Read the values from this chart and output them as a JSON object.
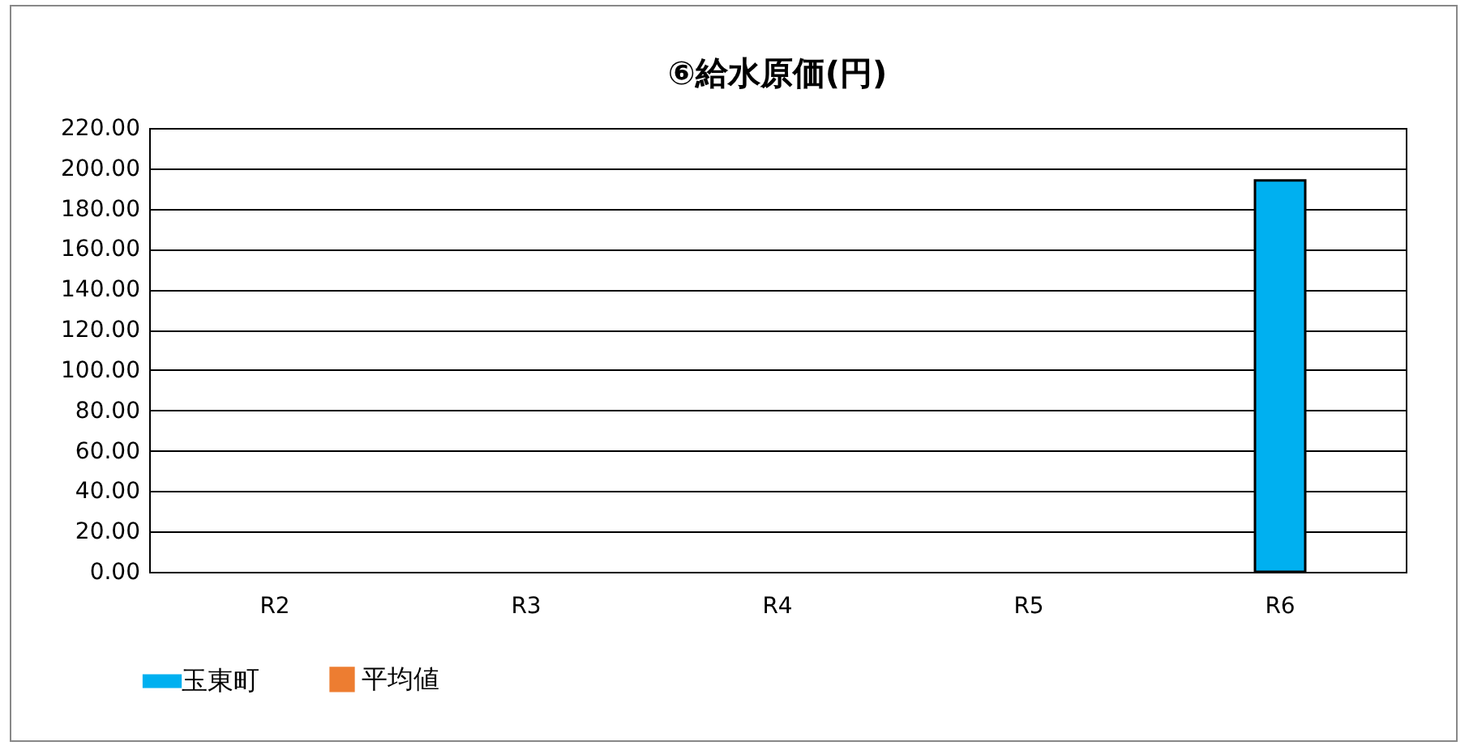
{
  "chart_data": {
    "type": "bar",
    "title": "⑥給水原価(円)",
    "categories": [
      "R2",
      "R3",
      "R4",
      "R5",
      "R6"
    ],
    "series": [
      {
        "name": "玉東町",
        "color": "#00b0f0",
        "values": [
          null,
          null,
          null,
          null,
          194
        ]
      },
      {
        "name": "平均値",
        "type": "line",
        "color": "#ed7d31",
        "values": [
          null,
          null,
          null,
          null,
          null
        ]
      }
    ],
    "ylim": [
      0,
      220
    ],
    "yticks": [
      {
        "value": 0,
        "label": "0.00"
      },
      {
        "value": 20,
        "label": "20.00"
      },
      {
        "value": 40,
        "label": "40.00"
      },
      {
        "value": 60,
        "label": "60.00"
      },
      {
        "value": 80,
        "label": "80.00"
      },
      {
        "value": 100,
        "label": "100.00"
      },
      {
        "value": 120,
        "label": "120.00"
      },
      {
        "value": 140,
        "label": "140.00"
      },
      {
        "value": 160,
        "label": "160.00"
      },
      {
        "value": 180,
        "label": "180.00"
      },
      {
        "value": 200,
        "label": "200.00"
      },
      {
        "value": 220,
        "label": "220.00"
      }
    ],
    "grid": "y",
    "legend": "bottom",
    "marker": "square"
  }
}
